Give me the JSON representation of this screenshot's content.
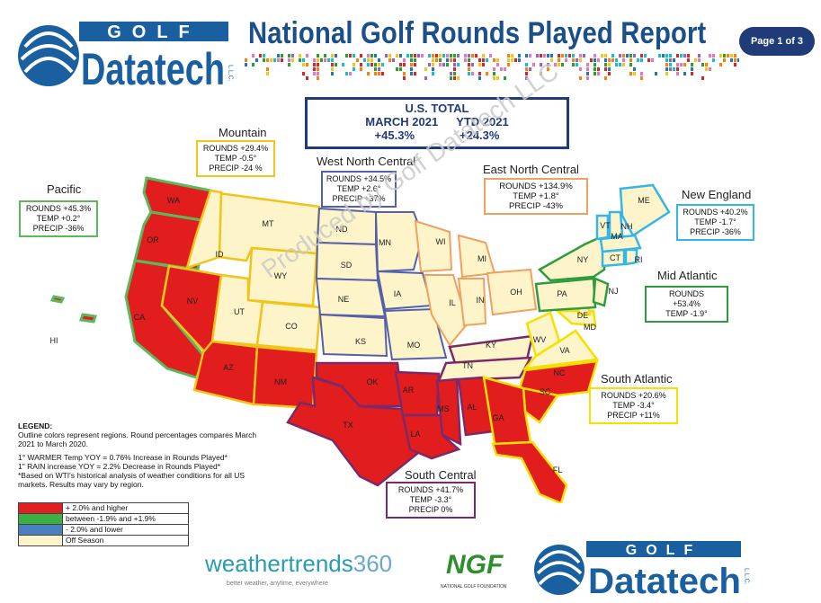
{
  "header": {
    "logo_top": "GOLF",
    "logo_main": "Datatech",
    "logo_llc": "L.L.C.",
    "title": "National Golf Rounds Played Report",
    "page_badge": "Page 1 of 3"
  },
  "us_total": {
    "heading": "U.S. TOTAL",
    "month_label": "MARCH 2021",
    "ytd_label": "YTD  2021",
    "month_value": "+45.3%",
    "ytd_value": "+24.3%"
  },
  "regions": {
    "pacific": {
      "title": "Pacific",
      "rounds": "ROUNDS  +45.3%",
      "temp": "TEMP +0.2°",
      "precip": "PRECIP -36%",
      "color": "#5cb85c"
    },
    "mountain": {
      "title": "Mountain",
      "rounds": "ROUNDS  +29.4%",
      "temp": "TEMP -0.5°",
      "precip": "PRECIP -24 %",
      "color": "#f0c419"
    },
    "west_north_central": {
      "title": "West North Central",
      "rounds": "ROUNDS  +34.5%",
      "temp": "TEMP  +2.6°",
      "precip": "PRECIP +37%",
      "color": "#5560a8"
    },
    "east_north_central": {
      "title": "East North Central",
      "rounds": "ROUNDS  +134.9%",
      "temp": "TEMP +1.8°",
      "precip": "PRECIP -43%",
      "color": "#f0a060"
    },
    "new_england": {
      "title": "New England",
      "rounds": "ROUNDS  +40.2%",
      "temp": "TEMP  -1.7°",
      "precip": "PRECIP -36%",
      "color": "#35b6e6"
    },
    "mid_atlantic": {
      "title": "Mid Atlantic",
      "rounds": "ROUNDS",
      "rounds_value": "+53.4%",
      "temp": "TEMP  -1.9°",
      "color": "#2e9c3e"
    },
    "south_atlantic": {
      "title": "South Atlantic",
      "rounds": "ROUNDS  +20.6%",
      "temp": "TEMP  -3.4°",
      "precip": "PRECIP +11%",
      "color": "#f5e000"
    },
    "south_central": {
      "title": "South Central",
      "rounds": "ROUNDS  +41.7%",
      "temp": "TEMP -3.3°",
      "precip": "PRECIP  0%",
      "color": "#7a2a6a"
    }
  },
  "state_labels": [
    "WA",
    "OR",
    "CA",
    "NV",
    "ID",
    "MT",
    "WY",
    "UT",
    "CO",
    "AZ",
    "NM",
    "HI",
    "ND",
    "SD",
    "NE",
    "KS",
    "MN",
    "IA",
    "MO",
    "WI",
    "MI",
    "IL",
    "IN",
    "OH",
    "KY",
    "TN",
    "OK",
    "TX",
    "AR",
    "LA",
    "MS",
    "AL",
    "GA",
    "FL",
    "SC",
    "NC",
    "VA",
    "WV",
    "PA",
    "NY",
    "NJ",
    "DE",
    "MD",
    "VT",
    "NH",
    "ME",
    "MA",
    "CT",
    "RI"
  ],
  "legend": {
    "heading": "LEGEND:",
    "line1": "Outline colors represent regions. Round percentages compares March 2021 to March 2020.",
    "line2": "1° WARMER Temp YOY  = 0.76% Increase in Rounds Played*",
    "line3": "1\" RAIN increase YOY = 2.2% Decrease in Rounds Played*",
    "line4": "*Based on WTI's historical analysis of weather conditions for all US markets. Results may vary by region.",
    "items": [
      {
        "label": "+ 2.0% and higher",
        "color": "#e02020"
      },
      {
        "label": "between -1.9% and +1.9%",
        "color": "#3cb043"
      },
      {
        "label": "- 2.0% and lower",
        "color": "#4a7fc0"
      },
      {
        "label": "Off Season",
        "color": "#fdf5c9"
      }
    ]
  },
  "footer": {
    "weathertrends": "weathertrends",
    "weathertrends_num": "360",
    "weathertrends_tag": "better weather, anytime, everywhere",
    "ngf": "NGF",
    "ngf_sub": "NATIONAL GOLF FOUNDATION"
  },
  "watermark": "Produced by Golf Datatech LLC"
}
